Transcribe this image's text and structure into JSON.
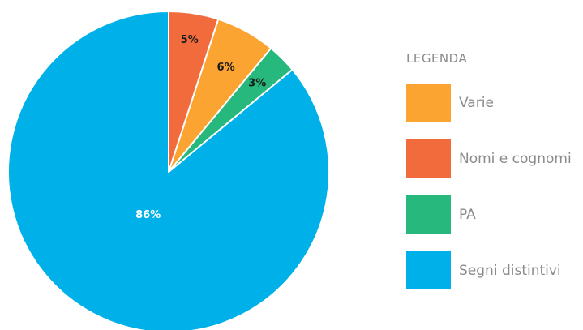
{
  "chart_data": {
    "type": "pie",
    "slices": [
      {
        "name": "Segni distintivi",
        "value": 86,
        "label": "86%",
        "color": "#00b0e8",
        "label_color": "#ffffff"
      },
      {
        "name": "PA",
        "value": 3,
        "label": "3%",
        "color": "#26b87c",
        "label_color": "#1a1a1a"
      },
      {
        "name": "Varie",
        "value": 6,
        "label": "6%",
        "color": "#fba432",
        "label_color": "#1a1a1a"
      },
      {
        "name": "Nomi e cognomi",
        "value": 5,
        "label": "5%",
        "color": "#f26b3c",
        "label_color": "#1a1a1a"
      }
    ],
    "legend": {
      "title": "LEGENDA",
      "placement": "right",
      "items": [
        {
          "name": "Varie",
          "color": "#fba432"
        },
        {
          "name": "Nomi e cognomi",
          "color": "#f26b3c"
        },
        {
          "name": "PA",
          "color": "#26b87c"
        },
        {
          "name": "Segni distintivi",
          "color": "#00b0e8"
        }
      ]
    }
  }
}
